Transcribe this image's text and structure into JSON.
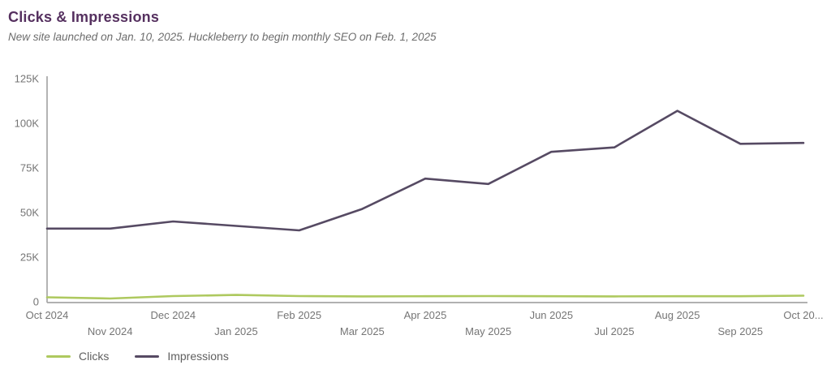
{
  "header": {
    "title": "Clicks & Impressions",
    "subtitle": "New site launched on Jan. 10, 2025. Huckleberry to begin monthly SEO on Feb. 1, 2025"
  },
  "colors": {
    "title_text": "#55305f",
    "subtitle_text": "#6d6d6d",
    "axis_line": "#a6a6a6",
    "axis_label": "#757575",
    "legend_label": "#5f5f5f",
    "clicks_line": "#aec95f",
    "impressions_line": "#564a63"
  },
  "chart_data": {
    "type": "line",
    "title": "Clicks & Impressions",
    "categories": [
      "Oct 2024",
      "Nov 2024",
      "Dec 2024",
      "Jan 2025",
      "Feb 2025",
      "Mar 2025",
      "Apr 2025",
      "May 2025",
      "Jun 2025",
      "Jul 2025",
      "Aug 2025",
      "Sep 2025",
      "Oct 2025"
    ],
    "x_display_labels": [
      "Oct 2024",
      "Nov 2024",
      "Dec 2024",
      "Jan 2025",
      "Feb 2025",
      "Mar 2025",
      "Apr 2025",
      "May 2025",
      "Jun 2025",
      "Jul 2025",
      "Aug 2025",
      "Sep 2025",
      "Oct 20..."
    ],
    "series": [
      {
        "name": "Clicks",
        "color": "#aec95f",
        "values": [
          2500,
          1800,
          3200,
          3800,
          3200,
          3000,
          3100,
          3200,
          3100,
          3000,
          3100,
          3100,
          3400
        ]
      },
      {
        "name": "Impressions",
        "color": "#564a63",
        "values": [
          41000,
          41000,
          45000,
          42500,
          40000,
          52000,
          69000,
          66000,
          84000,
          86500,
          107000,
          88500,
          89000
        ]
      }
    ],
    "ylim": [
      0,
      125000
    ],
    "ytick_values": [
      0,
      25000,
      50000,
      75000,
      100000,
      125000
    ],
    "ytick_labels": [
      "0",
      "25K",
      "50K",
      "75K",
      "100K",
      "125K"
    ],
    "grid": "off",
    "legend_position": "bottom-left",
    "xlabel": "",
    "ylabel": ""
  }
}
